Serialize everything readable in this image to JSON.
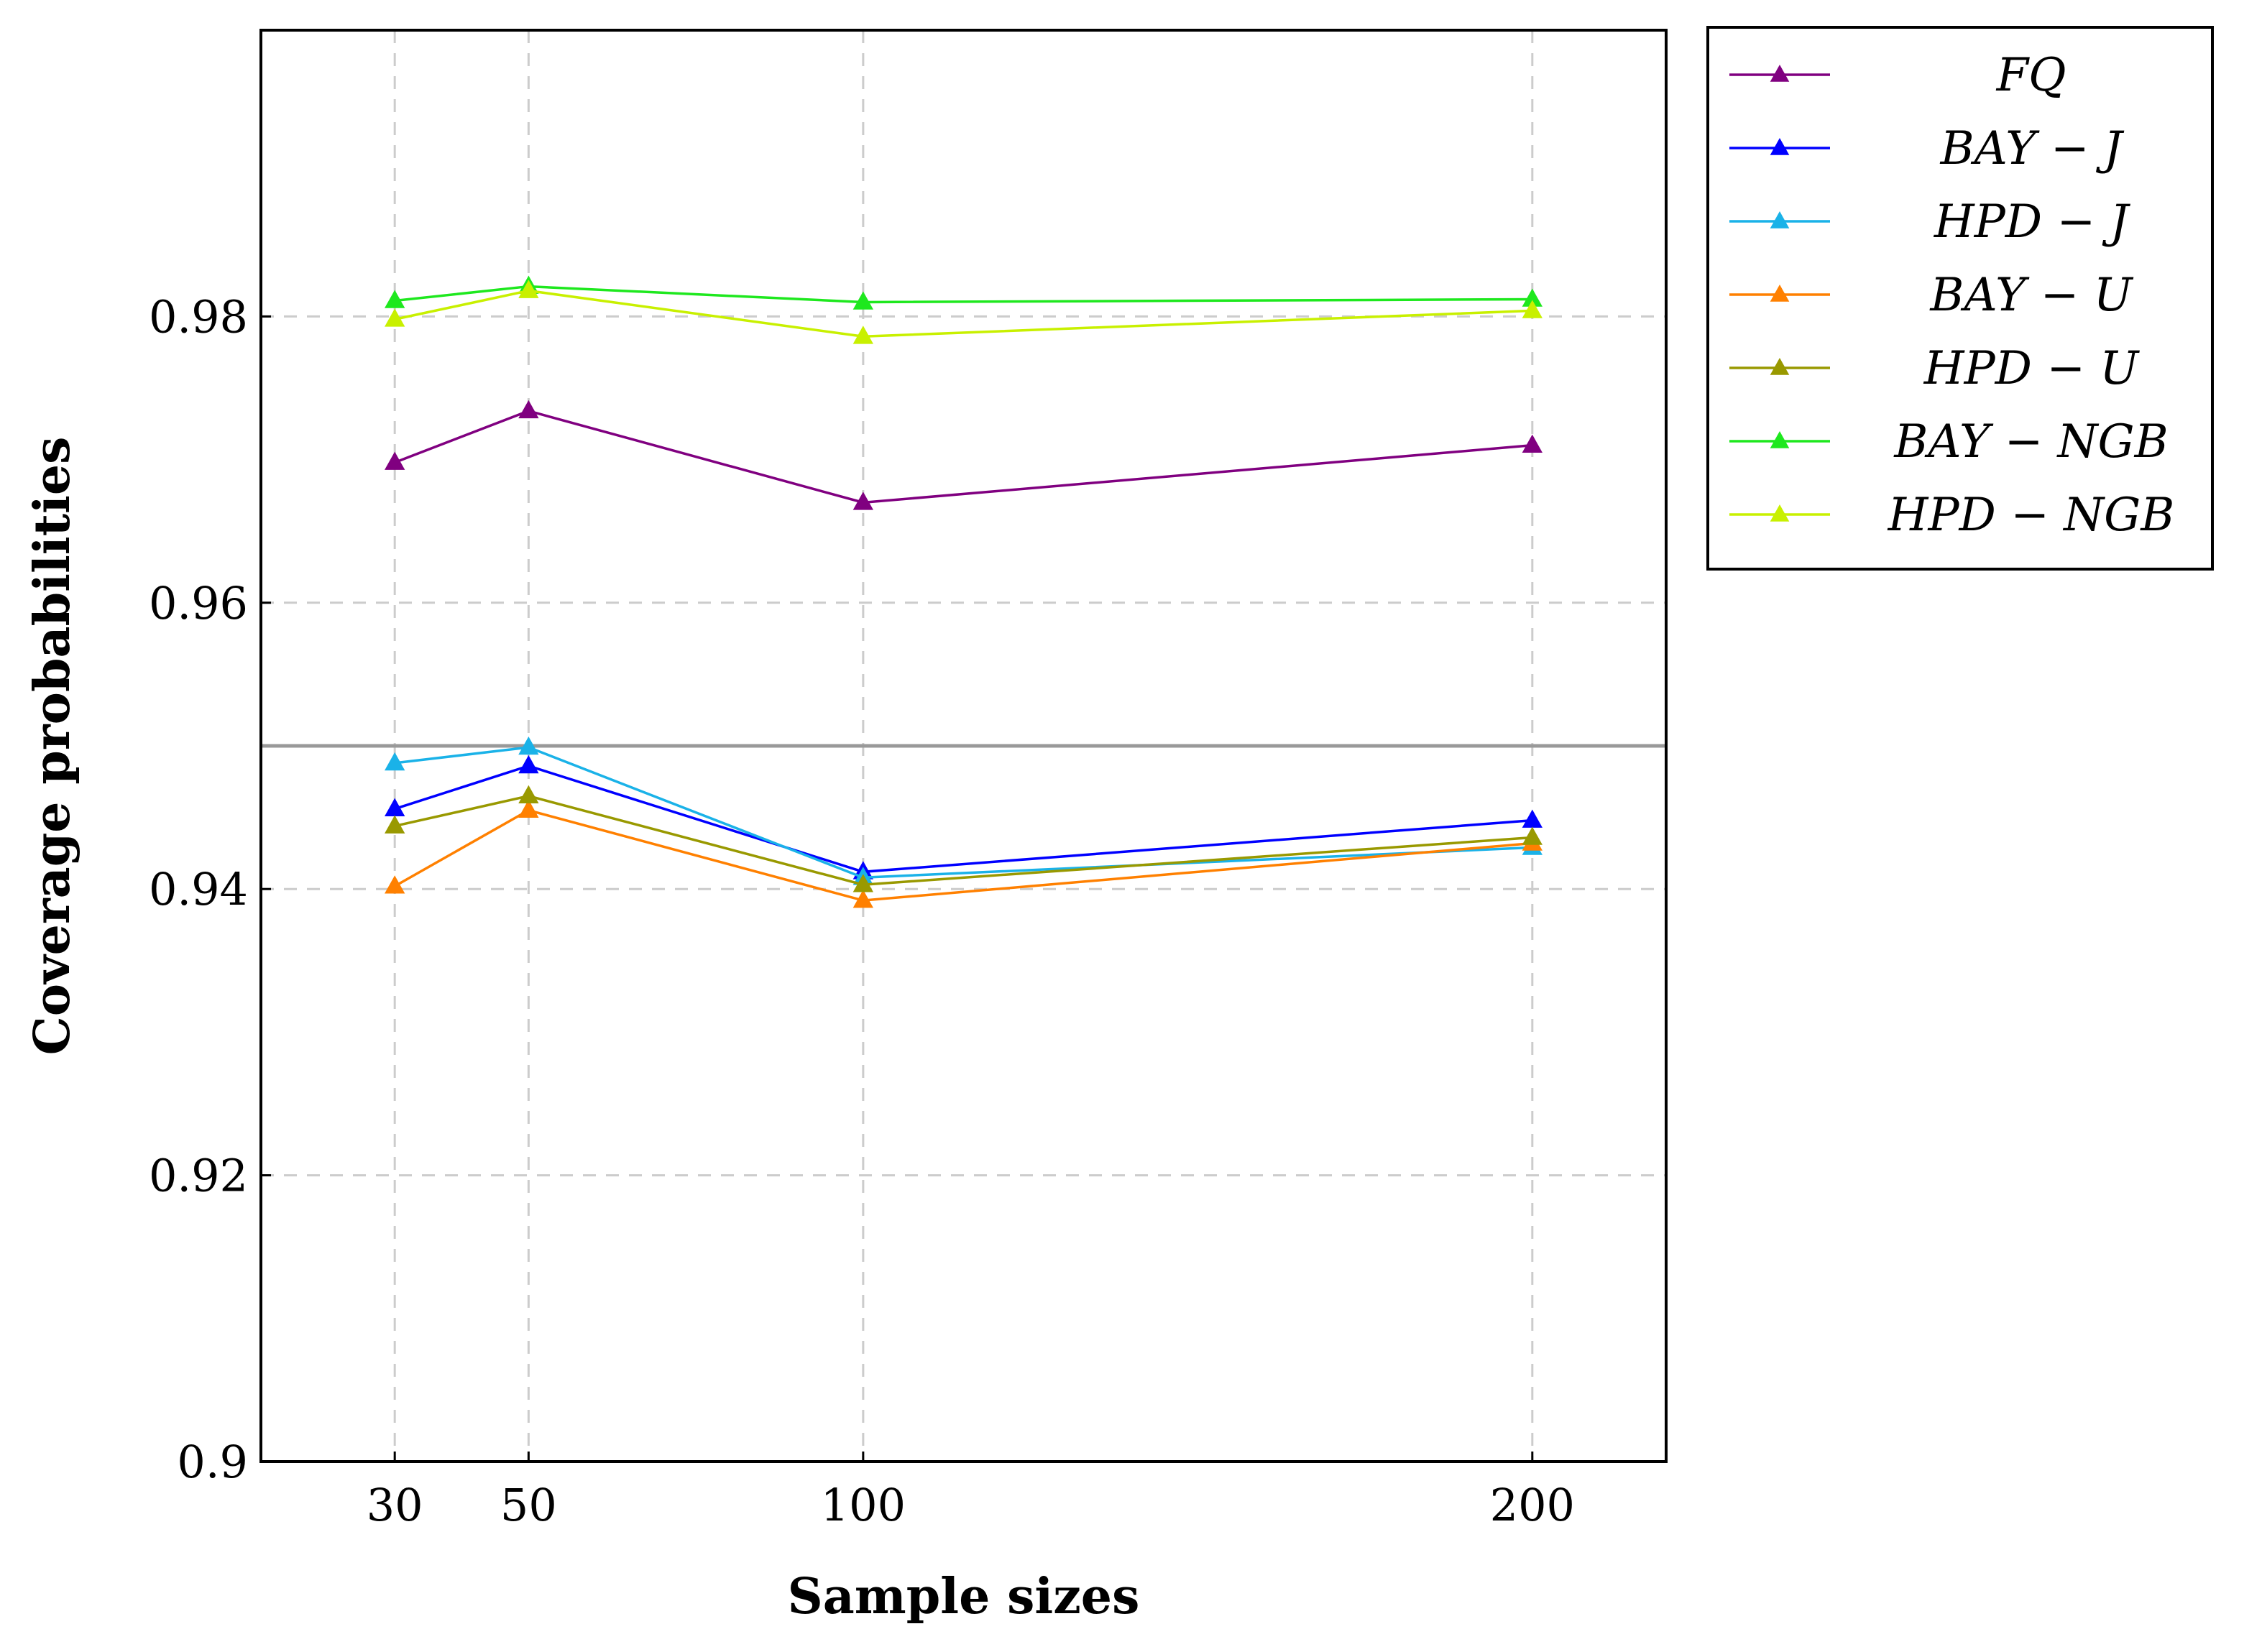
{
  "chart_data": {
    "type": "line",
    "title": "",
    "xlabel": "Sample sizes",
    "ylabel": "Coverage probabilities",
    "x": [
      30,
      50,
      100,
      200
    ],
    "x_ticks": [
      "30",
      "50",
      "100",
      "200"
    ],
    "xlim": [
      10,
      220
    ],
    "ylim": [
      0.9,
      1.0
    ],
    "y_ticks": [
      "0.9",
      "0.92",
      "0.94",
      "0.96",
      "0.98"
    ],
    "grid": true,
    "reference_line": 0.95,
    "legend_position": "outside-top-right",
    "series": [
      {
        "name": "FQ",
        "color": "#800080",
        "values": [
          0.9698,
          0.9734,
          0.967,
          0.971
        ]
      },
      {
        "name": "BAY − J",
        "color": "#0000ff",
        "values": [
          0.9456,
          0.9486,
          0.9412,
          0.9448
        ]
      },
      {
        "name": "HPD − J",
        "color": "#1ab2e8",
        "values": [
          0.9488,
          0.9499,
          0.9408,
          0.9429
        ]
      },
      {
        "name": "BAY − U",
        "color": "#ff8000",
        "values": [
          0.9402,
          0.9455,
          0.9392,
          0.9432
        ]
      },
      {
        "name": "HPD − U",
        "color": "#999900",
        "values": [
          0.9444,
          0.9465,
          0.9403,
          0.9436
        ]
      },
      {
        "name": "BAY − NGB",
        "color": "#1ee81e",
        "values": [
          0.9811,
          0.9821,
          0.981,
          0.9812
        ]
      },
      {
        "name": "HPD − NGB",
        "color": "#c8f000",
        "values": [
          0.9798,
          0.9818,
          0.9786,
          0.9804
        ]
      }
    ]
  }
}
